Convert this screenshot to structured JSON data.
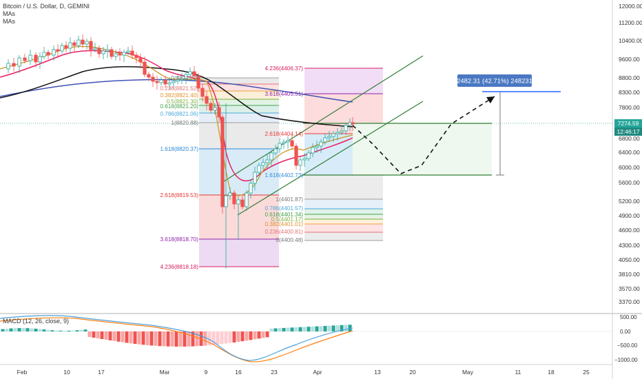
{
  "header": {
    "title": "Bitcoin / U.S. Dollar, D, GEMINI",
    "indicators": [
      "MAs",
      "MAs"
    ]
  },
  "macd": {
    "label": "MACD (12, 26, close, 9)",
    "ticks": [
      "500.00",
      "0.00",
      "−500.00",
      "−1000.00"
    ]
  },
  "price": {
    "current": "7274.59",
    "countdown": "12:46:17",
    "axis_ticks": [
      "12000.00",
      "11200.00",
      "10400.00",
      "9600.00",
      "8800.00",
      "8300.00",
      "7800.00",
      "6800.00",
      "6400.00",
      "6000.00",
      "5600.00",
      "5200.00",
      "4900.00",
      "4600.00",
      "4300.00",
      "4050.00",
      "3810.00",
      "3570.00",
      "3370.00"
    ]
  },
  "x_axis": {
    "ticks": [
      "Feb",
      "10",
      "17",
      "Mar",
      "9",
      "16",
      "23",
      "Apr",
      "13",
      "20",
      "May",
      "11",
      "18",
      "25"
    ]
  },
  "measure": {
    "label": "2482.31 (42.71%) 248231"
  },
  "fib_left": {
    "levels": [
      "0.236(8821.52)",
      "0.382(8821.40)",
      "0.5(8821.30)",
      "0.618(8821.20)",
      "0.786(8821.06)",
      "1(8820.88)",
      "1.618(8820.37)",
      "2.618(8819.53)",
      "3.618(8818.70)",
      "4.236(8818.18)"
    ],
    "top_label": "0(8821.72)"
  },
  "fib_right": {
    "levels": [
      "4.236(4406.37)",
      "3.618(4405.51)",
      "2.618(4404.14)",
      "1.618(4402.73)",
      "1(4401.87)",
      "0.786(4401.57)",
      "0.618(4401.34)",
      "0.5(4401.17)",
      "0.382(4401.01)",
      "0.236(4400.81)",
      "0(4400.48)"
    ]
  },
  "chart_data": {
    "type": "candlestick",
    "title": "Bitcoin / U.S. Dollar, D, GEMINI",
    "series": [
      {
        "name": "BTCUSD",
        "approx_close_path": [
          [
            "Jan 27",
            8900
          ],
          [
            "Feb 3",
            9300
          ],
          [
            "Feb 10",
            9900
          ],
          [
            "Feb 13",
            10300
          ],
          [
            "Feb 17",
            9700
          ],
          [
            "Feb 24",
            9700
          ],
          [
            "Mar 1",
            8600
          ],
          [
            "Mar 7",
            9000
          ],
          [
            "Mar 9",
            7950
          ],
          [
            "Mar 12",
            4900
          ],
          [
            "Mar 13",
            5300
          ],
          [
            "Mar 16",
            5000
          ],
          [
            "Mar 20",
            6200
          ],
          [
            "Mar 23",
            6500
          ],
          [
            "Mar 27",
            6800
          ],
          [
            "Mar 30",
            5900
          ],
          [
            "Apr 3",
            6800
          ],
          [
            "Apr 6",
            7250
          ],
          [
            "Apr 8",
            7274.59
          ]
        ]
      }
    ],
    "y_scale": "log",
    "ylim": [
      3300,
      12300
    ]
  }
}
